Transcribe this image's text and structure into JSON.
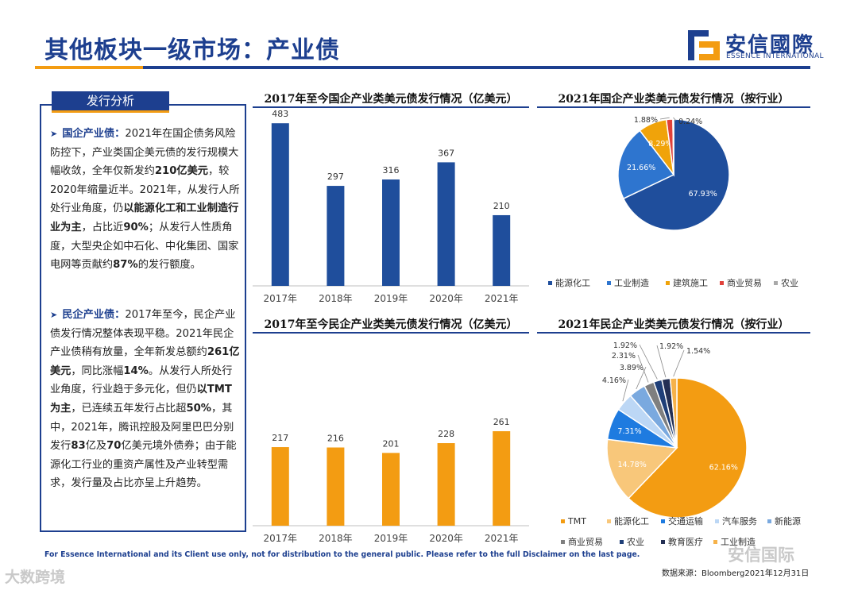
{
  "header": {
    "title": "其他板块一级市场：产业债",
    "logo_cn": "安信國際",
    "logo_en": "ESSENCE INTERNATIONAL"
  },
  "analysis": {
    "tab_label": "发行分析",
    "soe_text_html": "<span class=\"arrow\">➤</span><span class=\"hl\">国企产业债：</span>2021年在国企债务风险防控下，产业类国企美元债的发行规模大幅收敛，全年仅新发约<b>210亿美元</b>，较2020年缩量近半。2021年，从发行人所处行业角度，仍<b>以能源化工和工业制造行业为主</b>，占比近<b>90%</b>；从发行人性质角度，大型央企如中石化、中化集团、国家电网等贡献约<b>87%</b>的发行额度。",
    "private_text_html": "<span class=\"arrow\">➤</span><span class=\"hl\">民企产业债：</span>2017年至今，民企产业债发行情况整体表现平稳。2021年民企产业债稍有放量，全年新发总额约<b>261亿美元</b>，同比涨幅<b>14%</b>。从发行人所处行业角度，行业趋于多元化，但仍<b>以TMT为主</b>，已连续五年发行占比超<b>50%</b>，其中，2021年，腾讯控股及阿里巴巴分别发行<b>83</b>亿及<b>70</b>亿美元境外债券；由于能源化工行业的重资产属性及产业转型需求，发行量及占比亦呈上升趋势。"
  },
  "chart_data": [
    {
      "type": "bar",
      "title": "2017年至今国企产业类美元债发行情况（亿美元）",
      "categories": [
        "2017年",
        "2018年",
        "2019年",
        "2020年",
        "2021年"
      ],
      "values": [
        483,
        297,
        316,
        367,
        210
      ],
      "color": "#1f4e9c",
      "ylim": [
        0,
        500
      ],
      "grid": false
    },
    {
      "type": "pie",
      "title": "2021年国企产业类美元债发行情况（按行业）",
      "labels": [
        "能源化工",
        "工业制造",
        "建筑施工",
        "商业贸易",
        "农业"
      ],
      "values": [
        67.93,
        21.66,
        8.29,
        1.88,
        0.24
      ],
      "value_labels": [
        "67.93%",
        "21.66%",
        "8.29%",
        "1.88%",
        "0.24%"
      ],
      "colors": [
        "#1f4e9c",
        "#2e75cf",
        "#f0a30a",
        "#e0413a",
        "#a9a9a9"
      ],
      "legend": "bottom"
    },
    {
      "type": "bar",
      "title": "2017年至今民企产业类美元债发行情况（亿美元）",
      "categories": [
        "2017年",
        "2018年",
        "2019年",
        "2020年",
        "2021年"
      ],
      "values": [
        217,
        216,
        201,
        228,
        261
      ],
      "color": "#f39c12",
      "ylim": [
        0,
        500
      ],
      "grid": false
    },
    {
      "type": "pie",
      "title": "2021年民企产业类美元债发行情况（按行业）",
      "labels": [
        "TMT",
        "能源化工",
        "交通运输",
        "汽车服务",
        "新能源",
        "商业贸易",
        "农业",
        "教育医疗",
        "工业制造"
      ],
      "values": [
        62.16,
        14.78,
        7.31,
        4.16,
        3.89,
        2.31,
        1.92,
        1.92,
        1.54
      ],
      "value_labels": [
        "62.16%",
        "14.78%",
        "7.31%",
        "4.16%",
        "3.89%",
        "2.31%",
        "1.92%",
        "1.92%",
        "1.54%"
      ],
      "colors": [
        "#f39c12",
        "#f8c77a",
        "#1e7be0",
        "#bcd7f5",
        "#7aa9df",
        "#7f7f7f",
        "#1f3f78",
        "#232f54",
        "#f6b24a"
      ],
      "legend": "bottom"
    }
  ],
  "footer": {
    "disclaimer": "For Essence International and its Client use only, not for distribution to the general public. Please refer to the full Disclaimer on the last page.",
    "source": "数据来源：Bloomberg2021年12月31日",
    "watermark_left": "大数跨境",
    "watermark_right": "安信国际"
  }
}
